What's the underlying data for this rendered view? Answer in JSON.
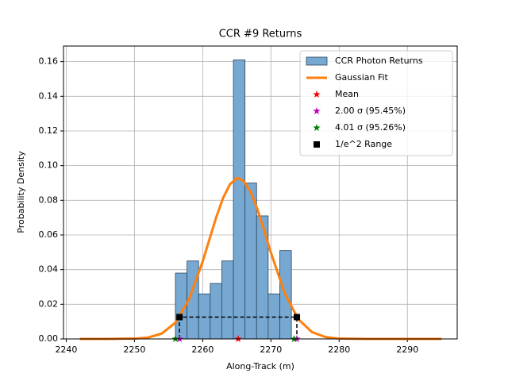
{
  "chart_data": {
    "type": "histogram",
    "title": "CCR #9 Returns",
    "x_label": "Along-Track (m)",
    "y_label": "Probability Density",
    "xlim": [
      2239.6,
      2297.3
    ],
    "ylim": [
      0,
      0.169
    ],
    "xticks": [
      2240,
      2250,
      2260,
      2270,
      2280,
      2290
    ],
    "yticks": [
      {
        "value": 0,
        "label": "0.00"
      },
      {
        "value": 0.02,
        "label": "0.02"
      },
      {
        "value": 0.04,
        "label": "0.04"
      },
      {
        "value": 0.06,
        "label": "0.06"
      },
      {
        "value": 0.08,
        "label": "0.08"
      },
      {
        "value": 0.1,
        "label": "0.10"
      },
      {
        "value": 0.12,
        "label": "0.12"
      },
      {
        "value": 0.14,
        "label": "0.14"
      },
      {
        "value": 0.16,
        "label": "0.16"
      }
    ],
    "grid": true,
    "legend": "upper right",
    "name": "CCR Photon Returns",
    "color": "#76a8d1",
    "bins": [
      2256.0,
      2257.7,
      2259.4,
      2261.1,
      2262.8,
      2264.5,
      2266.2,
      2267.9,
      2269.6,
      2271.3,
      2273.0
    ],
    "values": [
      0.038,
      0.045,
      0.026,
      0.032,
      0.045,
      0.161,
      0.09,
      0.071,
      0.026,
      0.051
    ],
    "series": [
      {
        "name": "Gaussian Fit",
        "color": "#ff7f0e",
        "x": [
          2242,
          2246,
          2250,
          2252,
          2254,
          2256,
          2258,
          2260,
          2261,
          2262,
          2263,
          2264,
          2265,
          2265.2,
          2266,
          2267,
          2268,
          2269,
          2270,
          2272,
          2274,
          2276,
          2278,
          2280,
          2284,
          2288,
          2295
        ],
        "values": [
          0,
          0,
          0.0002,
          0.0008,
          0.0031,
          0.0094,
          0.0229,
          0.0447,
          0.0576,
          0.0704,
          0.0814,
          0.0893,
          0.0927,
          0.0928,
          0.0912,
          0.085,
          0.0751,
          0.0628,
          0.0498,
          0.0266,
          0.0114,
          0.004,
          0.0011,
          0.0002,
          0,
          0,
          0
        ]
      }
    ],
    "markers": [
      {
        "name": "Mean",
        "color": "#ff0000",
        "marker": "star",
        "x": [
          2265.2
        ],
        "values": [
          0
        ]
      },
      {
        "name": "2.00 σ (95.45%)",
        "color": "#bf00bf",
        "marker": "star",
        "x": [
          2256.6,
          2273.8
        ],
        "values": [
          0,
          0
        ]
      },
      {
        "name": "4.01 σ (95.26%)",
        "color": "#008000",
        "marker": "star",
        "x": [
          2256.0,
          2273.4
        ],
        "values": [
          0,
          0
        ]
      },
      {
        "name": "1/e^2 Range",
        "color": "#000000",
        "marker": "square",
        "x": [
          2256.6,
          2273.8
        ],
        "values": [
          0.0126,
          0.0126
        ]
      }
    ]
  }
}
